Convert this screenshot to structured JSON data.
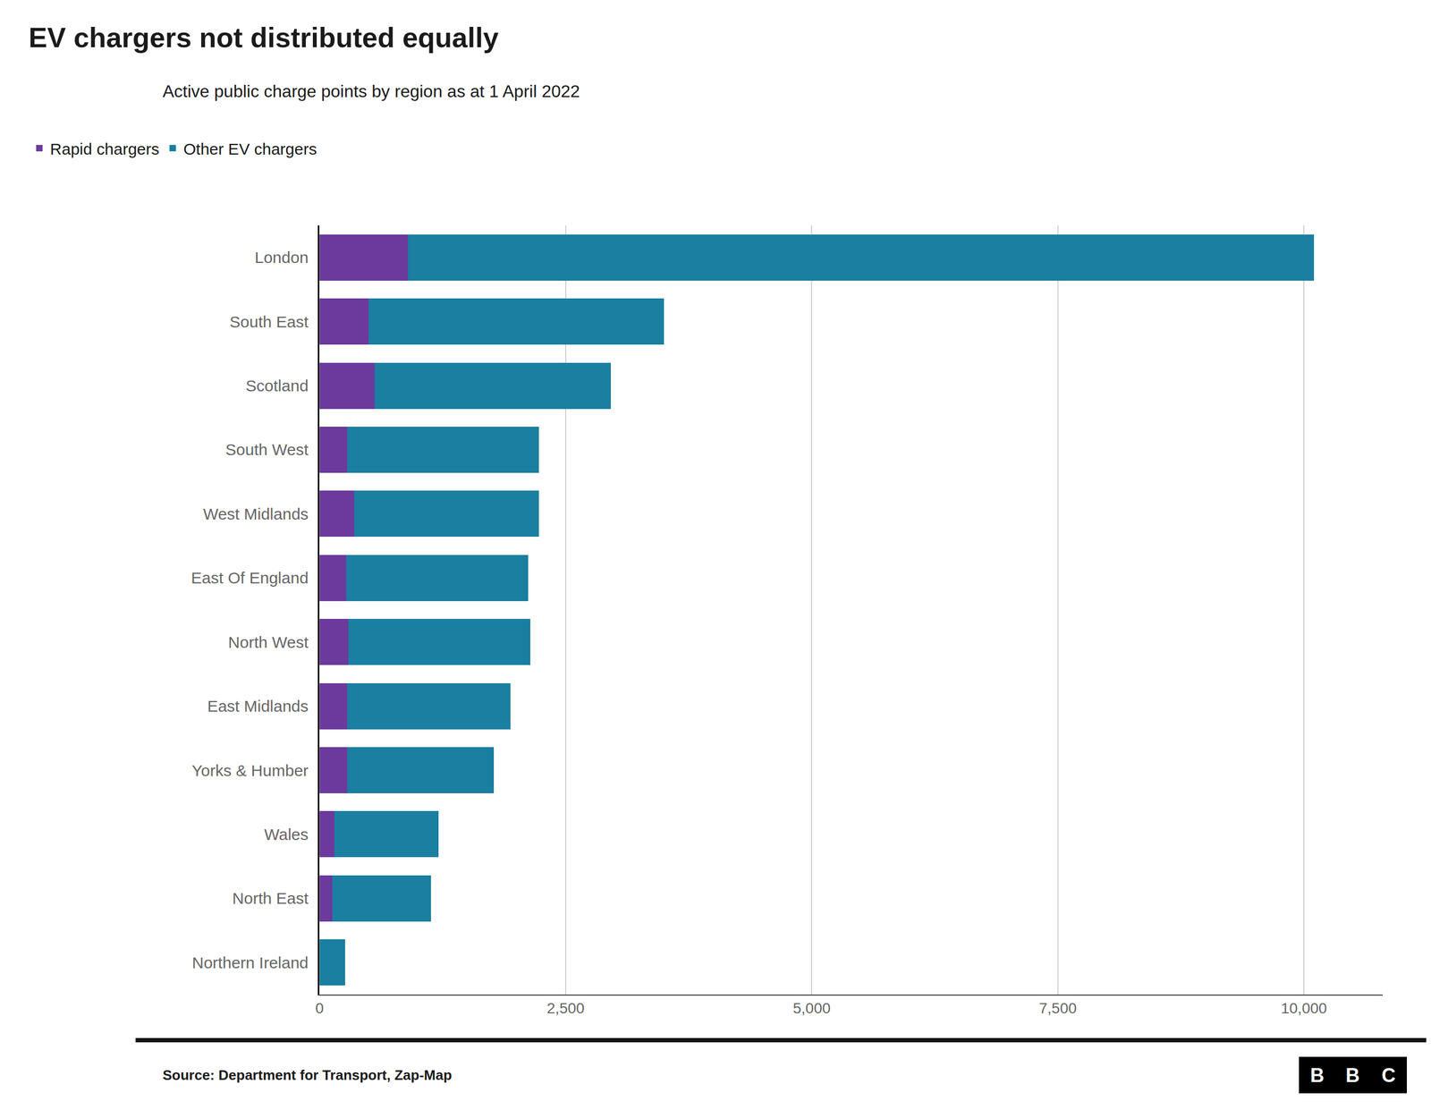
{
  "chart_data": {
    "type": "bar",
    "orientation": "horizontal",
    "stacked": true,
    "title": "EV chargers not distributed equally",
    "subtitle": "Active public charge points by region as at 1 April 2022",
    "source": "Source: Department for Transport, Zap-Map",
    "logo": [
      "B",
      "B",
      "C"
    ],
    "categories": [
      "London",
      "South East",
      "Scotland",
      "South West",
      "West Midlands",
      "East Of England",
      "North West",
      "East Midlands",
      "Yorks & Humber",
      "Wales",
      "North East",
      "Northern Ireland"
    ],
    "series": [
      {
        "name": "Rapid chargers",
        "color": "#6B3A9C",
        "values": [
          900,
          500,
          560,
          280,
          350,
          270,
          290,
          280,
          280,
          150,
          130,
          0
        ]
      },
      {
        "name": "Other EV chargers",
        "color": "#1A7FA0",
        "values": [
          9200,
          3000,
          2400,
          1950,
          1880,
          1850,
          1850,
          1660,
          1490,
          1060,
          1000,
          260
        ]
      }
    ],
    "xlim": [
      0,
      10800
    ],
    "xticks": [
      0,
      {
        "value": 2500,
        "label": "2,500"
      },
      {
        "value": 5000,
        "label": "5,000"
      },
      {
        "value": 7500,
        "label": "7,500"
      },
      {
        "value": 10000,
        "label": "10,000"
      }
    ],
    "grid": true,
    "legend": "upper left"
  }
}
